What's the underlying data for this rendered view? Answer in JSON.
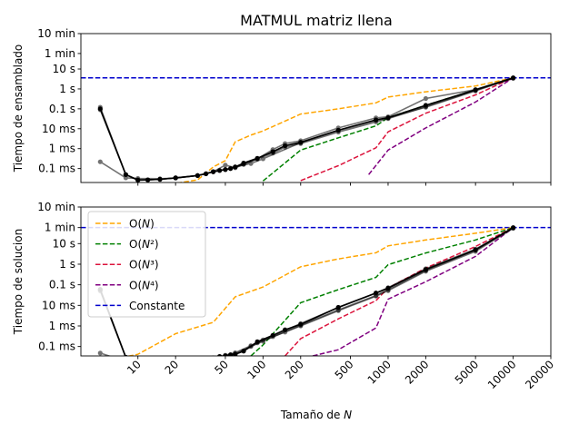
{
  "chart_data": {
    "type": "line",
    "title": "MATMUL matriz llena",
    "xlabel_prefix": "Tamaño de ",
    "xlabel_var": "N",
    "xscale": "log",
    "xlim": [
      3.5,
      20000
    ],
    "x_ticks": [
      10,
      20,
      50,
      100,
      200,
      500,
      1000,
      2000,
      5000,
      10000,
      20000
    ],
    "x_tick_labels": [
      "10",
      "20",
      "50",
      "100",
      "200",
      "500",
      "1000",
      "2000",
      "5000",
      "10000",
      "20000"
    ],
    "yscale": "log",
    "y_ticks": [
      0.0001,
      0.001,
      0.01,
      0.1,
      1,
      10,
      60,
      600
    ],
    "y_tick_labels": [
      "0.1 ms",
      "1 ms",
      "10 ms",
      "0.1 s",
      "1 s",
      "10 s",
      "1 min",
      "10 min"
    ],
    "legend": {
      "location": "upper-left",
      "panel": 1,
      "entries": [
        "O(N)",
        "O(N²)",
        "O(N³)",
        "O(N⁴)",
        "Constante"
      ]
    },
    "colors": {
      "O(N)": "#ffa500",
      "O(N²)": "#008000",
      "O(N³)": "#dc143c",
      "O(N⁴)": "#800080",
      "Constante": "#0000cd",
      "measurements": "#000000"
    },
    "panels": [
      {
        "ylabel": "Tiempo de ensamblado",
        "ylim": [
          2e-05,
          600
        ],
        "constant": 3.6,
        "complexity": [
          {
            "name": "O(N)",
            "x": [
              5,
              8,
              10,
              15,
              20,
              30,
              40,
              50,
              60,
              80,
              100,
              200,
              400,
              800,
              1000,
              2000,
              5000,
              10000
            ],
            "y": [
              2e-06,
              4.8e-06,
              6.7e-06,
              1.15e-05,
              1.8e-05,
              2.7e-05,
              0.00012,
              0.00025,
              0.0022,
              0.0048,
              0.0078,
              0.055,
              0.1,
              0.2,
              0.39,
              0.72,
              1.4,
              3.6
            ]
          },
          {
            "name": "O(N²)",
            "x": [
              100,
              200,
              400,
              800,
              1000,
              2000,
              5000,
              10000
            ],
            "y": [
              2.4e-05,
              0.00085,
              0.0035,
              0.014,
              0.036,
              0.15,
              0.9,
              3.6
            ]
          },
          {
            "name": "O(N³)",
            "x": [
              200,
              400,
              800,
              1000,
              2000,
              5000,
              10000
            ],
            "y": [
              2.5e-05,
              0.00014,
              0.0011,
              0.007,
              0.06,
              0.5,
              3.6
            ]
          },
          {
            "name": "O(N⁴)",
            "x": [
              700,
              1000,
              2000,
              5000,
              10000
            ],
            "y": [
              5e-05,
              0.00085,
              0.011,
              0.22,
              3.6
            ]
          }
        ],
        "measurements": [
          {
            "x": [
              5,
              8,
              10,
              12,
              15,
              20,
              30,
              35,
              40,
              45,
              50,
              55,
              60,
              70,
              90,
              120,
              150,
              200,
              400,
              800,
              1000,
              2000,
              5000,
              10000
            ],
            "y": [
              0.1,
              5e-05,
              2.7e-05,
              2.7e-05,
              2.9e-05,
              3.4e-05,
              4.5e-05,
              5.5e-05,
              7e-05,
              8e-05,
              9e-05,
              0.0001,
              0.00012,
              0.00019,
              0.00033,
              0.0007,
              0.0014,
              0.0021,
              0.0085,
              0.028,
              0.036,
              0.15,
              0.9,
              3.6
            ]
          },
          {
            "x": [
              5,
              8,
              10,
              12,
              15,
              20,
              30,
              35,
              40,
              45,
              50,
              55,
              60,
              70,
              90,
              120,
              150,
              200,
              400,
              800,
              1000,
              2000,
              5000,
              10000
            ],
            "y": [
              0.12,
              5e-05,
              2.6e-05,
              2.7e-05,
              2.9e-05,
              3.4e-05,
              4.5e-05,
              5.5e-05,
              7e-05,
              8e-05,
              9e-05,
              0.0001,
              0.00012,
              0.00017,
              0.0003,
              0.0006,
              0.0012,
              0.0018,
              0.0068,
              0.022,
              0.032,
              0.13,
              0.85,
              3.5
            ]
          },
          {
            "x": [
              5,
              8,
              10,
              15,
              20,
              30,
              40,
              50,
              60,
              70,
              90,
              120,
              150,
              200,
              400,
              800,
              1000,
              2000,
              5000,
              10000
            ],
            "y": [
              0.00022,
              3.4e-05,
              3.2e-05,
              3.1e-05,
              3.3e-05,
              4.5e-05,
              7e-05,
              0.00015,
              0.00011,
              0.00016,
              0.00031,
              0.0009,
              0.0018,
              0.0025,
              0.011,
              0.035,
              0.04,
              0.33,
              0.92,
              3.6
            ]
          },
          {
            "x": [
              5,
              8,
              10,
              15,
              20,
              30,
              40,
              50,
              60,
              80,
              100,
              200,
              400,
              800,
              1000,
              2000,
              5000,
              10000
            ],
            "y": [
              0.09,
              5e-05,
              2.6e-05,
              2.9e-05,
              3.4e-05,
              4.4e-05,
              7e-05,
              8.8e-05,
              0.00012,
              0.00018,
              0.00031,
              0.002,
              0.008,
              0.026,
              0.035,
              0.12,
              0.8,
              3.4
            ]
          }
        ]
      },
      {
        "ylabel": "Tiempo de solucion",
        "ylim": [
          3.5e-05,
          600
        ],
        "constant": 60,
        "complexity": [
          {
            "name": "O(N)",
            "x": [
              5,
              10,
              20,
              40,
              60,
              100,
              200,
              400,
              800,
              1000,
              2000,
              5000,
              10000
            ],
            "y": [
              1.85e-05,
              4.2e-05,
              0.00042,
              0.0015,
              0.026,
              0.078,
              0.75,
              1.8,
              3.6,
              7.8,
              15,
              32,
              60
            ]
          },
          {
            "name": "O(N²)",
            "x": [
              80,
              100,
              200,
              400,
              800,
              1000,
              2000,
              5000,
              10000
            ],
            "y": [
              3.5e-05,
              0.00012,
              0.0135,
              0.058,
              0.23,
              0.95,
              3.5,
              15,
              60
            ]
          },
          {
            "name": "O(N³)",
            "x": [
              150,
              200,
              400,
              800,
              1000,
              2000,
              5000,
              10000
            ],
            "y": [
              3.5e-05,
              0.00024,
              0.0022,
              0.017,
              0.07,
              0.65,
              7.2,
              60
            ]
          },
          {
            "name": "O(N⁴)",
            "x": [
              250,
              400,
              800,
              1000,
              2000,
              5000,
              10000
            ],
            "y": [
              3.5e-05,
              7e-05,
              0.0008,
              0.02,
              0.14,
              2.4,
              60
            ]
          }
        ],
        "measurements": [
          {
            "x": [
              5,
              8,
              10,
              15,
              20,
              30,
              40,
              45,
              50,
              55,
              60,
              70,
              90,
              120,
              150,
              200,
              400,
              800,
              1000,
              2000,
              5000,
              10000
            ],
            "y": [
              0.06,
              3e-05,
              1.8e-05,
              1.7e-05,
              1.7e-05,
              2.2e-05,
              2.8e-05,
              3.3e-05,
              3.5e-05,
              4e-05,
              4.2e-05,
              6e-05,
              0.00017,
              0.00035,
              0.00065,
              0.0012,
              0.008,
              0.04,
              0.068,
              0.55,
              5,
              60
            ]
          },
          {
            "x": [
              5,
              8,
              10,
              15,
              20,
              30,
              40,
              45,
              50,
              55,
              60,
              70,
              90,
              120,
              150,
              200,
              400,
              800,
              1000,
              2000,
              5000,
              10000
            ],
            "y": [
              0.05,
              3e-05,
              1.8e-05,
              1.7e-05,
              1.7e-05,
              2.2e-05,
              2.8e-05,
              3.3e-05,
              3.5e-05,
              4e-05,
              4.2e-05,
              6e-05,
              0.00015,
              0.0003,
              0.0005,
              0.001,
              0.0055,
              0.028,
              0.052,
              0.45,
              4.2,
              55
            ]
          },
          {
            "x": [
              5,
              8,
              10,
              15,
              20,
              30,
              40,
              50,
              60,
              80,
              100,
              200,
              400,
              800,
              1000,
              2000,
              5000,
              10000
            ],
            "y": [
              4.8e-05,
              1.9e-05,
              1.6e-05,
              1.7e-05,
              1.8e-05,
              2.2e-05,
              2.8e-05,
              3.8e-05,
              5e-05,
              0.00011,
              0.00021,
              0.0013,
              0.0078,
              0.04,
              0.072,
              0.6,
              5.4,
              60
            ]
          },
          {
            "x": [
              5,
              8,
              10,
              15,
              20,
              30,
              40,
              50,
              60,
              80,
              100,
              200,
              400,
              800,
              1000,
              2000,
              5000,
              10000
            ],
            "y": [
              0.055,
              3e-05,
              1.8e-05,
              1.7e-05,
              1.7e-05,
              2.2e-05,
              2.8e-05,
              3.6e-05,
              4.5e-05,
              0.0001,
              0.00018,
              0.0011,
              0.006,
              0.03,
              0.058,
              0.5,
              4.8,
              58
            ]
          }
        ]
      }
    ]
  }
}
